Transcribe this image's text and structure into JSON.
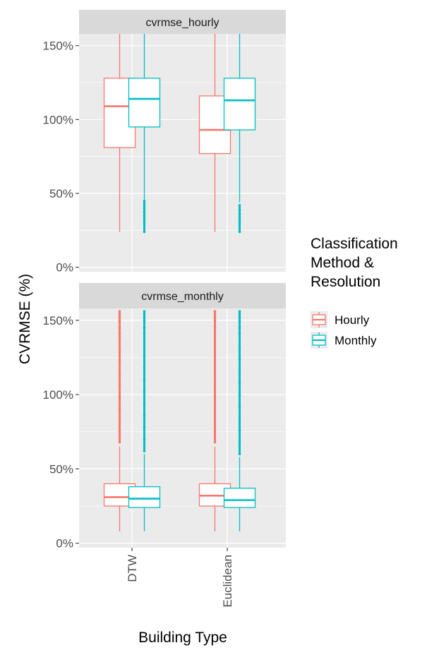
{
  "colors": {
    "hourly": "#F8766D",
    "monthly": "#00BFC4",
    "panel_bg": "#EBEBEB",
    "strip_bg": "#D9D9D9",
    "grid": "#FFFFFF"
  },
  "chart_data": {
    "type": "boxplot",
    "xlabel": "Building Type",
    "ylabel": "CVRMSE (%)",
    "categories": [
      "DTW",
      "Euclidean"
    ],
    "ylim": [
      -3,
      158
    ],
    "yticks": [
      0,
      50,
      100,
      150
    ],
    "ytick_labels": [
      "0%",
      "50%",
      "100%",
      "150%"
    ],
    "legend": {
      "title_lines": [
        "Classification",
        "Method &",
        "Resolution"
      ],
      "placement": "right",
      "entries": [
        {
          "key": "hourly",
          "label": "Hourly"
        },
        {
          "key": "monthly",
          "label": "Monthly"
        }
      ]
    },
    "panels": [
      {
        "strip": "cvrmse_hourly",
        "boxes": [
          {
            "category": "DTW",
            "series": "hourly",
            "whisker_low": 24,
            "q1": 81,
            "median": 109,
            "q3": 128,
            "whisker_high": 158,
            "outliers": []
          },
          {
            "category": "DTW",
            "series": "monthly",
            "whisker_low": 46,
            "q1": 95,
            "median": 114,
            "q3": 128,
            "whisker_high": 158,
            "outliers": [
              24,
              31,
              33,
              35,
              37,
              40,
              43,
              45
            ]
          },
          {
            "category": "Euclidean",
            "series": "hourly",
            "whisker_low": 24,
            "q1": 77,
            "median": 93,
            "q3": 116,
            "whisker_high": 158,
            "outliers": []
          },
          {
            "category": "Euclidean",
            "series": "monthly",
            "whisker_low": 44,
            "q1": 93,
            "median": 113,
            "q3": 128,
            "whisker_high": 158,
            "outliers": [
              24,
              30,
              32,
              34,
              36,
              39,
              42
            ]
          }
        ]
      },
      {
        "strip": "cvrmse_monthly",
        "boxes": [
          {
            "category": "DTW",
            "series": "hourly",
            "whisker_low": 8,
            "q1": 25,
            "median": 31,
            "q3": 40,
            "whisker_high": 65,
            "outliers": [
              68,
              75,
              82,
              90,
              98,
              106,
              114,
              122,
              130,
              138,
              141,
              145,
              150,
              152,
              154,
              156
            ]
          },
          {
            "category": "DTW",
            "series": "monthly",
            "whisker_low": 8,
            "q1": 24,
            "median": 30,
            "q3": 38,
            "whisker_high": 60,
            "outliers": [
              62,
              70,
              78,
              86,
              94,
              102,
              110,
              118,
              126,
              134,
              141,
              145,
              150,
              152,
              154,
              156
            ]
          },
          {
            "category": "Euclidean",
            "series": "hourly",
            "whisker_low": 8,
            "q1": 25,
            "median": 32,
            "q3": 40,
            "whisker_high": 65,
            "outliers": [
              68,
              75,
              82,
              90,
              98,
              106,
              114,
              122,
              130,
              138,
              141,
              145,
              150,
              152,
              154,
              156
            ]
          },
          {
            "category": "Euclidean",
            "series": "monthly",
            "whisker_low": 8,
            "q1": 24,
            "median": 29,
            "q3": 37,
            "whisker_high": 58,
            "outliers": [
              60,
              68,
              76,
              84,
              92,
              100,
              108,
              116,
              124,
              132,
              141,
              145,
              150,
              152,
              154,
              156
            ]
          }
        ]
      }
    ]
  }
}
